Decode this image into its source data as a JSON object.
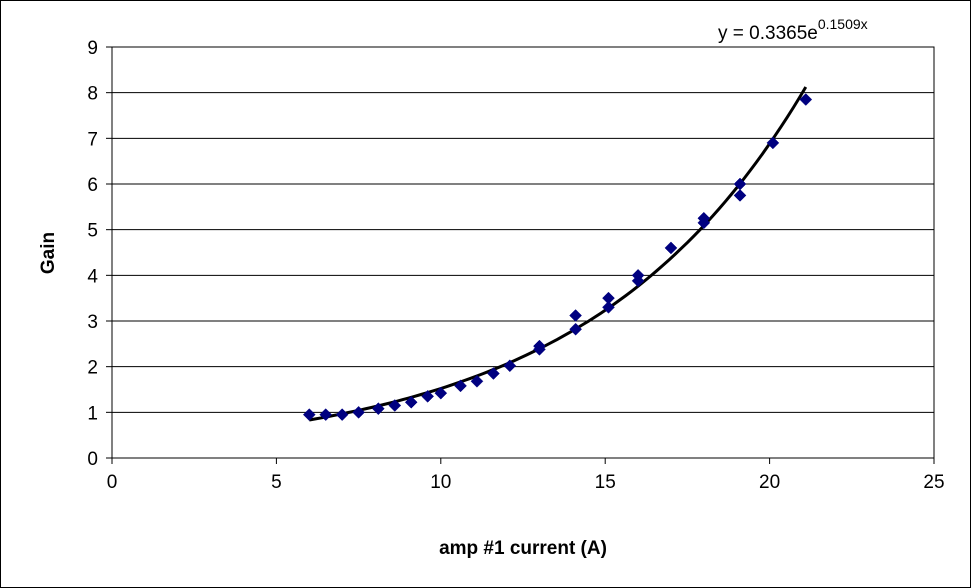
{
  "chart_data": {
    "type": "scatter",
    "xlabel": "amp #1 current (A)",
    "ylabel": "Gain",
    "xlim": [
      0,
      25
    ],
    "ylim": [
      0,
      9
    ],
    "x_ticks": [
      0,
      5,
      10,
      15,
      20,
      25
    ],
    "y_ticks": [
      0,
      1,
      2,
      3,
      4,
      5,
      6,
      7,
      8,
      9
    ],
    "grid": "horizontal",
    "colors": {
      "points": "#000080",
      "trendline": "#000000",
      "grid": "#000000"
    },
    "series": [
      {
        "x": [
          6.0,
          6.5,
          7.0,
          7.5,
          8.1,
          8.6,
          9.1,
          9.6,
          10.0,
          10.6,
          11.1,
          11.6,
          12.1,
          13.0,
          13.0,
          14.1,
          14.1,
          15.1,
          15.1,
          16.0,
          16.0,
          17.0,
          18.0,
          18.0,
          19.1,
          19.1,
          20.1,
          21.1
        ],
        "y": [
          0.95,
          0.95,
          0.95,
          1.0,
          1.08,
          1.15,
          1.22,
          1.35,
          1.42,
          1.58,
          1.68,
          1.85,
          2.02,
          2.38,
          2.45,
          2.82,
          3.12,
          3.3,
          3.5,
          3.88,
          4.0,
          4.6,
          5.15,
          5.25,
          5.75,
          6.0,
          6.9,
          7.85
        ]
      }
    ],
    "trendline": {
      "type": "exponential",
      "a": 0.3365,
      "b": 0.1509,
      "x_range": [
        6.0,
        21.1
      ],
      "label_base": "y = 0.3365e",
      "label_exponent": "0.1509x"
    }
  }
}
